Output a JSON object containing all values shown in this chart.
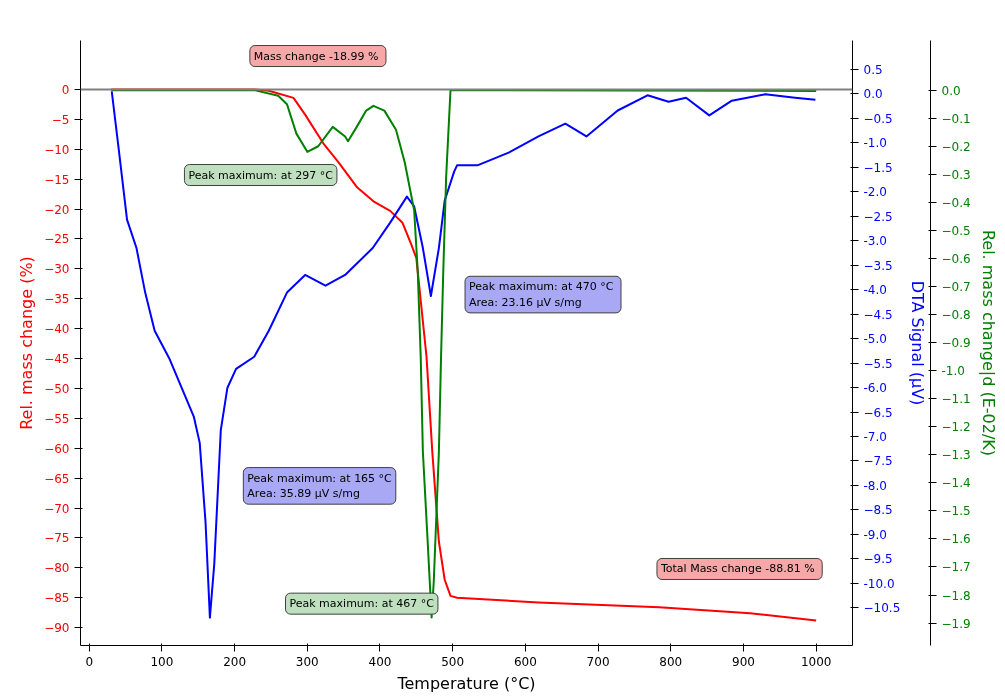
{
  "chart_data": {
    "type": "line",
    "xlabel": "Temperature (°C)",
    "ylabel": "Rel. mass change (%)",
    "y2label": "DTA Signal (µV)",
    "y3label": "Rel. mass change|d (E-02/K)",
    "xlim": [
      -12,
      1050
    ],
    "xticks": [
      0,
      100,
      200,
      300,
      400,
      500,
      600,
      700,
      800,
      900,
      1000
    ],
    "ylim": [
      -93,
      8.2
    ],
    "yticks": [
      0,
      -5,
      -10,
      -15,
      -20,
      -25,
      -30,
      -35,
      -40,
      -45,
      -50,
      -55,
      -60,
      -65,
      -70,
      -75,
      -80,
      -85,
      -90
    ],
    "y2lim": [
      -11.27,
      1.09
    ],
    "y2ticks": [
      0.5,
      {
        "value": 0,
        "label": "0.0"
      },
      -0.5,
      {
        "value": -1,
        "label": "-1.0"
      },
      -1.5,
      {
        "value": -2,
        "label": "-2.0"
      },
      -2.5,
      {
        "value": -3,
        "label": "-3.0"
      },
      -3.5,
      {
        "value": -4,
        "label": "-4.0"
      },
      -4.5,
      {
        "value": -5,
        "label": "-5.0"
      },
      -5.5,
      {
        "value": -6,
        "label": "-6.0"
      },
      -6.5,
      {
        "value": -7,
        "label": "-7.0"
      },
      -7.5,
      {
        "value": -8,
        "label": "-8.0"
      },
      -8.5,
      {
        "value": -9,
        "label": "-9.0"
      },
      -9.5,
      {
        "value": -10,
        "label": "-10.0"
      },
      -10.5
    ],
    "y3lim": [
      -1.98,
      0.177
    ],
    "y3ticks": [
      {
        "value": 0,
        "label": "0.0"
      },
      -0.1,
      -0.2,
      -0.3,
      -0.4,
      -0.5,
      -0.6,
      -0.7,
      -0.8,
      -0.9,
      {
        "value": -1,
        "label": "-1.0"
      },
      -1.1,
      -1.2,
      -1.3,
      -1.4,
      -1.5,
      -1.6,
      -1.7,
      -1.8,
      -1.9
    ],
    "grid": false,
    "marker": "none",
    "line_style": "solid",
    "ref_lines": [
      {
        "axis": "y",
        "value": 0,
        "color": "#808080"
      }
    ],
    "annotations": [
      "Mass change  -18.99 %",
      "Peak maximum: at 297 °C",
      "Peak maximum:  at 470 °C\nArea: 23.16 µV s/mg",
      "Peak maximum: at 165 °C\nArea: 35.89 µV s/mg",
      "Peak maximum: at 467 °C",
      "Total Mass change  -88.81 %"
    ],
    "series": [
      {
        "color": "#ff0000",
        "axis": "y",
        "x": [
          30,
          228,
          247,
          281,
          297,
          322,
          343,
          368,
          391,
          414,
          431,
          443,
          450,
          464,
          472,
          481,
          489,
          497,
          506,
          618,
          784,
          909,
          1000
        ],
        "values": [
          0,
          0,
          -0.2,
          -1.4,
          -4.2,
          -9.0,
          -12.2,
          -16.3,
          -18.7,
          -20.3,
          -22.3,
          -25.9,
          -28.2,
          -44.7,
          -60.7,
          -75.6,
          -82,
          -84.7,
          -85.0,
          -85.8,
          -86.6,
          -87.6,
          -88.8
        ]
      },
      {
        "color": "#0000ff",
        "axis": "y2",
        "x": [
          31,
          40,
          52,
          65,
          77,
          90,
          110,
          144,
          152,
          160,
          166,
          172,
          181,
          190,
          202,
          227,
          247,
          272,
          297,
          325,
          352,
          390,
          414,
          437,
          447,
          459,
          470,
          481,
          489,
          502,
          506,
          534,
          577,
          618,
          655,
          684,
          727,
          768,
          797,
          821,
          853,
          884,
          930,
          971,
          999
        ],
        "values": [
          0.05,
          -1.06,
          -2.57,
          -3.15,
          -4.06,
          -4.84,
          -5.4,
          -6.6,
          -7.13,
          -8.75,
          -10.7,
          -9.61,
          -6.87,
          -6.01,
          -5.62,
          -5.37,
          -4.84,
          -4.06,
          -3.7,
          -3.92,
          -3.7,
          -3.15,
          -2.63,
          -2.1,
          -2.3,
          -3.15,
          -4.13,
          -3.15,
          -2.18,
          -1.59,
          -1.46,
          -1.46,
          -1.2,
          -0.87,
          -0.61,
          -0.87,
          -0.34,
          -0.03,
          -0.16,
          -0.08,
          -0.44,
          -0.14,
          -0.01,
          -0.08,
          -0.12
        ]
      },
      {
        "color": "#008000",
        "axis": "y3",
        "x": [
          30,
          227,
          260,
          272,
          285,
          300,
          315,
          335,
          352,
          356,
          368,
          381,
          391,
          406,
          422,
          434,
          447,
          452,
          456,
          459,
          466,
          471,
          474,
          481,
          484,
          487,
          491,
          497,
          1000
        ],
        "values": [
          0,
          0,
          -0.02,
          -0.05,
          -0.155,
          -0.22,
          -0.2,
          -0.131,
          -0.165,
          -0.182,
          -0.131,
          -0.073,
          -0.056,
          -0.073,
          -0.141,
          -0.257,
          -0.428,
          -0.65,
          -0.95,
          -1.29,
          -1.63,
          -1.88,
          -1.75,
          -1.29,
          -0.95,
          -0.65,
          -0.31,
          0,
          -0.003
        ]
      }
    ]
  }
}
